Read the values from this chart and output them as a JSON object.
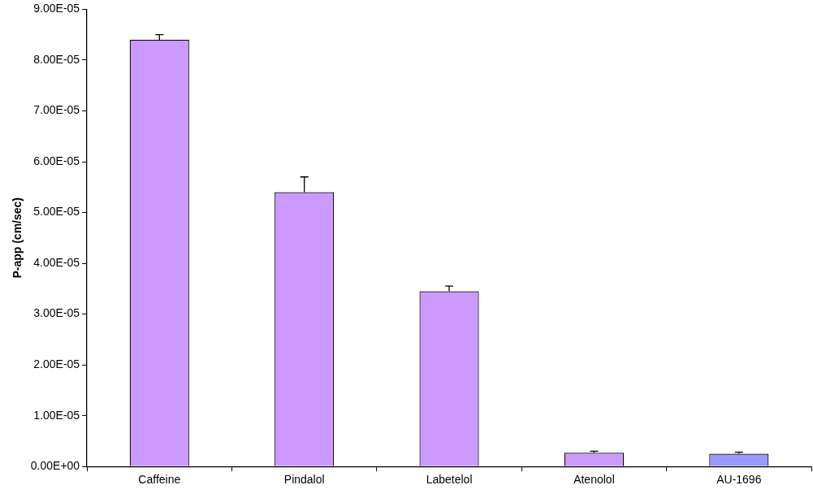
{
  "chart_data": {
    "type": "bar",
    "ylabel": "P-app (cm/sec)",
    "categories": [
      "Caffeine",
      "Pindalol",
      "Labetelol",
      "Atenolol",
      "AU-1696"
    ],
    "values": [
      8.4e-05,
      5.4e-05,
      3.45e-05,
      2.7e-06,
      2.5e-06
    ],
    "colors": [
      "#cc99ff",
      "#cc99ff",
      "#cc99ff",
      "#cc99ff",
      "#9999ff"
    ],
    "errors": [
      [
        8.4e-05,
        8.5e-05
      ],
      [
        5.4e-05,
        5.7e-05
      ],
      [
        3.45e-05,
        3.55e-05
      ],
      [
        2.7e-06,
        3e-06
      ],
      [
        2.5e-06,
        2.8e-06
      ]
    ],
    "ylim": [
      0,
      9e-05
    ],
    "yticks": [
      {
        "value": 0,
        "label": "0.00E+00"
      },
      {
        "value": 1e-05,
        "label": "1.00E-05"
      },
      {
        "value": 2e-05,
        "label": "2.00E-05"
      },
      {
        "value": 3e-05,
        "label": "3.00E-05"
      },
      {
        "value": 4e-05,
        "label": "4.00E-05"
      },
      {
        "value": 5e-05,
        "label": "5.00E-05"
      },
      {
        "value": 6e-05,
        "label": "6.00E-05"
      },
      {
        "value": 7e-05,
        "label": "7.00E-05"
      },
      {
        "value": 8e-05,
        "label": "8.00E-05"
      },
      {
        "value": 9e-05,
        "label": "9.00E-05"
      }
    ],
    "grid": false,
    "legend": false
  }
}
